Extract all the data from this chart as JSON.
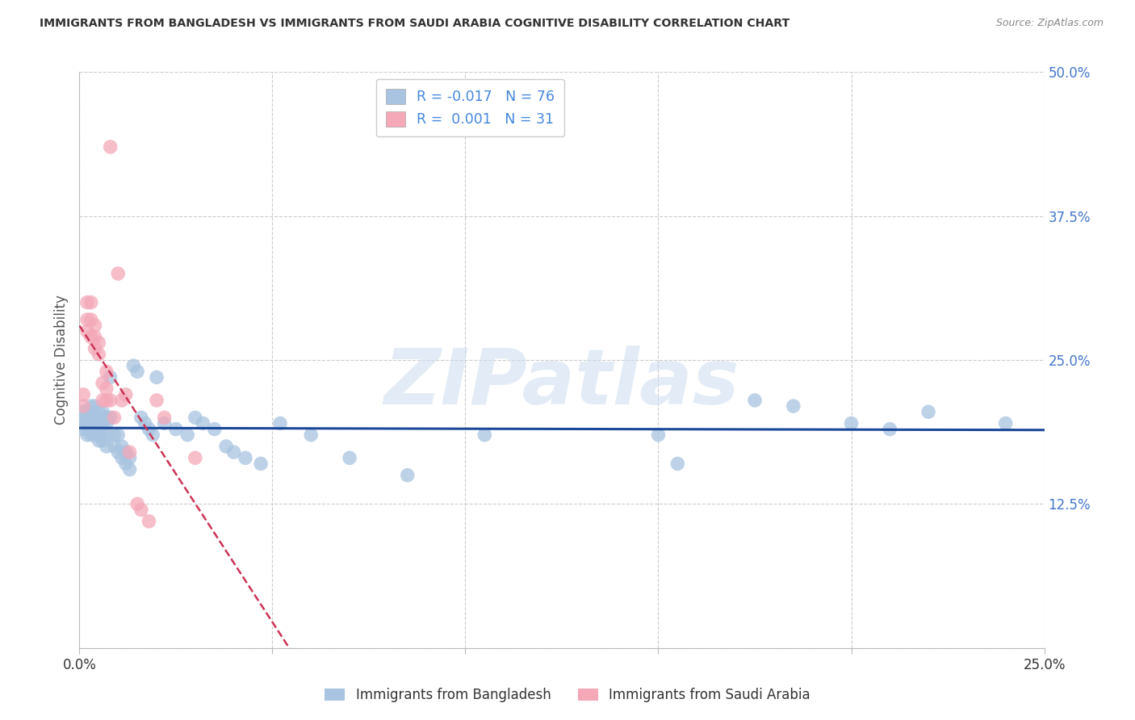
{
  "title": "IMMIGRANTS FROM BANGLADESH VS IMMIGRANTS FROM SAUDI ARABIA COGNITIVE DISABILITY CORRELATION CHART",
  "source": "Source: ZipAtlas.com",
  "ylabel_label": "Cognitive Disability",
  "xlim": [
    0.0,
    0.25
  ],
  "ylim": [
    0.0,
    0.5
  ],
  "xticks": [
    0.0,
    0.05,
    0.1,
    0.15,
    0.2,
    0.25
  ],
  "yticks": [
    0.0,
    0.125,
    0.25,
    0.375,
    0.5
  ],
  "bg_color": "#ffffff",
  "grid_color": "#cccccc",
  "watermark_text": "ZIPatlas",
  "watermark_color": "#ccddf0",
  "blue_R": -0.017,
  "blue_N": 76,
  "pink_R": 0.001,
  "pink_N": 31,
  "blue_scatter_color": "#a8c4e0",
  "pink_scatter_color": "#f4a8b8",
  "blue_line_color": "#1a4899",
  "pink_line_color": "#cc3355",
  "legend_blue": "Immigrants from Bangladesh",
  "legend_pink": "Immigrants from Saudi Arabia",
  "blue_x": [
    0.001,
    0.001,
    0.001,
    0.001,
    0.002,
    0.002,
    0.002,
    0.002,
    0.002,
    0.003,
    0.003,
    0.003,
    0.003,
    0.003,
    0.003,
    0.004,
    0.004,
    0.004,
    0.004,
    0.004,
    0.005,
    0.005,
    0.005,
    0.005,
    0.005,
    0.005,
    0.006,
    0.006,
    0.006,
    0.006,
    0.007,
    0.007,
    0.007,
    0.007,
    0.008,
    0.008,
    0.009,
    0.009,
    0.01,
    0.01,
    0.011,
    0.011,
    0.012,
    0.012,
    0.013,
    0.013,
    0.014,
    0.015,
    0.016,
    0.017,
    0.018,
    0.019,
    0.02,
    0.022,
    0.025,
    0.028,
    0.03,
    0.032,
    0.035,
    0.038,
    0.04,
    0.043,
    0.047,
    0.052,
    0.06,
    0.07,
    0.085,
    0.105,
    0.15,
    0.155,
    0.175,
    0.185,
    0.2,
    0.21,
    0.22,
    0.24
  ],
  "blue_y": [
    0.195,
    0.2,
    0.205,
    0.19,
    0.195,
    0.2,
    0.185,
    0.19,
    0.205,
    0.185,
    0.19,
    0.195,
    0.2,
    0.205,
    0.21,
    0.185,
    0.19,
    0.195,
    0.2,
    0.21,
    0.18,
    0.185,
    0.19,
    0.195,
    0.2,
    0.205,
    0.18,
    0.19,
    0.195,
    0.205,
    0.175,
    0.185,
    0.195,
    0.2,
    0.235,
    0.2,
    0.175,
    0.185,
    0.17,
    0.185,
    0.165,
    0.175,
    0.16,
    0.17,
    0.155,
    0.165,
    0.245,
    0.24,
    0.2,
    0.195,
    0.19,
    0.185,
    0.235,
    0.195,
    0.19,
    0.185,
    0.2,
    0.195,
    0.19,
    0.175,
    0.17,
    0.165,
    0.16,
    0.195,
    0.185,
    0.165,
    0.15,
    0.185,
    0.185,
    0.16,
    0.215,
    0.21,
    0.195,
    0.19,
    0.205,
    0.195
  ],
  "pink_x": [
    0.001,
    0.001,
    0.002,
    0.002,
    0.002,
    0.003,
    0.003,
    0.003,
    0.004,
    0.004,
    0.004,
    0.005,
    0.005,
    0.006,
    0.006,
    0.007,
    0.007,
    0.007,
    0.008,
    0.008,
    0.009,
    0.01,
    0.011,
    0.012,
    0.013,
    0.015,
    0.016,
    0.018,
    0.02,
    0.022,
    0.03
  ],
  "pink_y": [
    0.21,
    0.22,
    0.275,
    0.285,
    0.3,
    0.27,
    0.285,
    0.3,
    0.26,
    0.27,
    0.28,
    0.255,
    0.265,
    0.215,
    0.23,
    0.215,
    0.225,
    0.24,
    0.435,
    0.215,
    0.2,
    0.325,
    0.215,
    0.22,
    0.17,
    0.125,
    0.12,
    0.11,
    0.215,
    0.2,
    0.165
  ]
}
